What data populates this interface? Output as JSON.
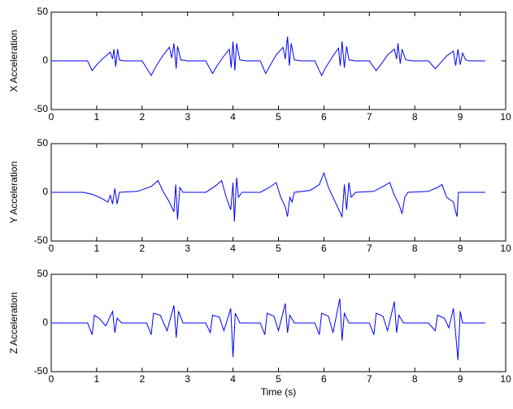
{
  "chart_data": [
    {
      "type": "line",
      "ylabel": "X Acceleration",
      "color": "#0000ff",
      "xlim": [
        0,
        10
      ],
      "xticks": [
        0,
        1,
        2,
        3,
        4,
        5,
        6,
        7,
        8,
        9,
        10
      ],
      "ylim": [
        -50,
        50
      ],
      "yticks": [
        -50,
        0,
        50
      ],
      "x": [
        0,
        0.8,
        0.9,
        1.0,
        1.15,
        1.3,
        1.35,
        1.38,
        1.42,
        1.46,
        1.5,
        1.6,
        2.0,
        2.2,
        2.3,
        2.45,
        2.6,
        2.65,
        2.7,
        2.75,
        2.78,
        2.85,
        3.0,
        3.4,
        3.55,
        3.65,
        3.8,
        3.92,
        3.96,
        4.0,
        4.04,
        4.08,
        4.15,
        4.3,
        4.6,
        4.72,
        4.8,
        4.95,
        5.1,
        5.15,
        5.2,
        5.24,
        5.28,
        5.35,
        5.5,
        5.8,
        5.95,
        6.05,
        6.2,
        6.32,
        6.36,
        6.4,
        6.45,
        6.5,
        6.55,
        6.7,
        7.0,
        7.15,
        7.25,
        7.4,
        7.55,
        7.6,
        7.63,
        7.68,
        7.72,
        7.8,
        7.95,
        8.3,
        8.45,
        8.55,
        8.7,
        8.85,
        8.9,
        8.95,
        9.0,
        9.05,
        9.12,
        9.2,
        9.55
      ],
      "values": [
        0,
        0,
        -10,
        -4,
        3,
        9,
        2,
        12,
        -6,
        12,
        1,
        0,
        0,
        -15,
        -6,
        5,
        14,
        3,
        18,
        -8,
        15,
        1,
        0,
        0,
        -13,
        -5,
        5,
        12,
        -7,
        20,
        -10,
        18,
        1,
        0,
        0,
        -13,
        -6,
        6,
        14,
        2,
        25,
        -5,
        18,
        1,
        0,
        0,
        -15,
        -6,
        5,
        13,
        -5,
        20,
        -7,
        15,
        1,
        0,
        0,
        -10,
        -4,
        6,
        12,
        2,
        18,
        -3,
        12,
        1,
        0,
        0,
        -8,
        -3,
        5,
        10,
        -5,
        12,
        -4,
        8,
        1,
        0,
        0
      ]
    },
    {
      "type": "line",
      "ylabel": "Y Acceleration",
      "color": "#0000ff",
      "xlim": [
        0,
        10
      ],
      "xticks": [
        0,
        1,
        2,
        3,
        4,
        5,
        6,
        7,
        8,
        9,
        10
      ],
      "ylim": [
        -50,
        50
      ],
      "yticks": [
        -50,
        0,
        50
      ],
      "x": [
        0,
        0.7,
        0.9,
        1.1,
        1.25,
        1.3,
        1.35,
        1.4,
        1.45,
        1.5,
        1.9,
        2.2,
        2.35,
        2.45,
        2.6,
        2.7,
        2.74,
        2.78,
        2.83,
        2.9,
        3.4,
        3.6,
        3.75,
        3.85,
        3.95,
        4.0,
        4.03,
        4.08,
        4.12,
        4.2,
        4.6,
        4.8,
        4.95,
        5.05,
        5.15,
        5.2,
        5.25,
        5.3,
        5.35,
        5.7,
        5.9,
        6.0,
        6.1,
        6.25,
        6.4,
        6.45,
        6.5,
        6.55,
        6.6,
        6.7,
        7.1,
        7.3,
        7.45,
        7.55,
        7.65,
        7.72,
        7.78,
        7.85,
        8.3,
        8.5,
        8.6,
        8.7,
        8.85,
        8.9,
        8.93,
        8.96,
        9.55
      ],
      "values": [
        0,
        0,
        -2,
        -6,
        -10,
        -3,
        -12,
        4,
        -12,
        0,
        1,
        6,
        12,
        2,
        -10,
        -20,
        8,
        -28,
        5,
        0,
        0,
        6,
        12,
        -5,
        -18,
        10,
        -30,
        15,
        -5,
        0,
        0,
        5,
        10,
        -5,
        -15,
        -25,
        -5,
        -10,
        0,
        2,
        8,
        20,
        5,
        -10,
        -25,
        8,
        -18,
        10,
        -5,
        0,
        1,
        6,
        10,
        -3,
        -12,
        -22,
        -5,
        0,
        1,
        5,
        8,
        -5,
        -10,
        -20,
        -25,
        0,
        0
      ]
    },
    {
      "type": "line",
      "ylabel": "Z Acceleration",
      "xlabel": "Time (s)",
      "color": "#0000ff",
      "xlim": [
        0,
        10
      ],
      "xticks": [
        0,
        1,
        2,
        3,
        4,
        5,
        6,
        7,
        8,
        9,
        10
      ],
      "ylim": [
        -50,
        50
      ],
      "yticks": [
        -50,
        0,
        50
      ],
      "x": [
        0,
        0.8,
        0.9,
        0.95,
        1.05,
        1.2,
        1.35,
        1.4,
        1.45,
        1.55,
        2.1,
        2.2,
        2.25,
        2.4,
        2.55,
        2.7,
        2.75,
        2.8,
        2.9,
        3.4,
        3.5,
        3.55,
        3.7,
        3.8,
        3.95,
        4.0,
        4.05,
        4.15,
        4.6,
        4.7,
        4.75,
        4.9,
        5.0,
        5.15,
        5.2,
        5.25,
        5.35,
        5.8,
        5.9,
        5.95,
        6.1,
        6.2,
        6.35,
        6.4,
        6.45,
        6.55,
        7.0,
        7.1,
        7.15,
        7.3,
        7.4,
        7.55,
        7.6,
        7.65,
        7.75,
        8.3,
        8.45,
        8.5,
        8.65,
        8.75,
        8.85,
        8.95,
        9.0,
        9.05,
        9.55
      ],
      "values": [
        0,
        0,
        -12,
        8,
        5,
        -3,
        12,
        -10,
        5,
        0,
        0,
        -12,
        10,
        8,
        -8,
        18,
        -15,
        12,
        0,
        0,
        -10,
        8,
        6,
        -8,
        15,
        -35,
        10,
        0,
        0,
        -12,
        10,
        7,
        -8,
        20,
        -10,
        8,
        0,
        0,
        -12,
        10,
        7,
        -10,
        25,
        -18,
        10,
        0,
        0,
        -12,
        10,
        7,
        -8,
        22,
        -10,
        8,
        0,
        0,
        -8,
        8,
        5,
        -5,
        15,
        -38,
        12,
        0,
        0
      ]
    }
  ]
}
